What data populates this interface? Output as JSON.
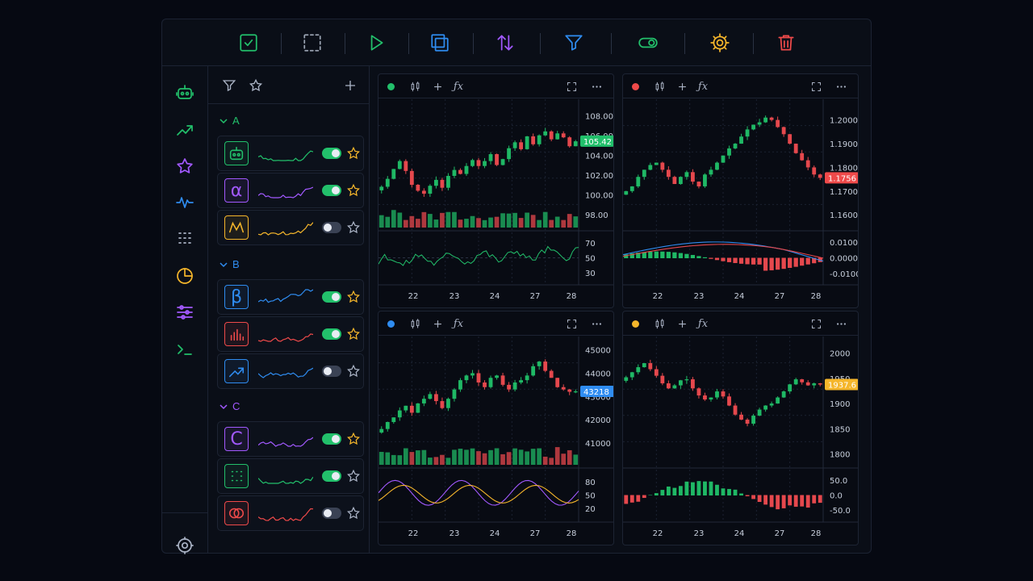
{
  "toolbar": {
    "icons": [
      "check-square-icon",
      "select-dashed-icon",
      "play-icon",
      "copy-icon",
      "sort-arrows-icon",
      "filter-icon",
      "toggle-icon",
      "gear-icon",
      "trash-icon"
    ],
    "colors": [
      "#22c06b",
      "#9aa3b2",
      "#22c06b",
      "#2f8cf0",
      "#a259ff",
      "#2f8cf0",
      "#22c06b",
      "#f5b62b",
      "#ef4a4a"
    ]
  },
  "rail": {
    "icons": [
      "robot-icon",
      "trend-up-icon",
      "star-icon",
      "pulse-icon",
      "grid-dots-icon",
      "pie-chart-icon",
      "sliders-icon",
      "terminal-icon",
      "settings-icon"
    ]
  },
  "groups": [
    {
      "name": "A",
      "color": "#22c06b",
      "items": [
        {
          "avatar": "robot",
          "glyph": "",
          "color": "#22c06b",
          "spark": "#22c06b",
          "enabled": true,
          "starred": true
        },
        {
          "avatar": "alpha",
          "glyph": "α",
          "color": "#a259ff",
          "spark": "#a259ff",
          "enabled": true,
          "starred": true
        },
        {
          "avatar": "wave",
          "glyph": "",
          "color": "#f5b62b",
          "spark": "#f5b62b",
          "enabled": false,
          "starred": false
        }
      ]
    },
    {
      "name": "B",
      "color": "#2f8cf0",
      "items": [
        {
          "avatar": "beta",
          "glyph": "β",
          "color": "#2f8cf0",
          "spark": "#2f8cf0",
          "enabled": true,
          "starred": true
        },
        {
          "avatar": "bars",
          "glyph": "",
          "color": "#ef4a4a",
          "spark": "#ef4a4a",
          "enabled": true,
          "starred": true
        },
        {
          "avatar": "trend",
          "glyph": "",
          "color": "#2f8cf0",
          "spark": "#2f8cf0",
          "enabled": false,
          "starred": false
        }
      ]
    },
    {
      "name": "C",
      "color": "#a259ff",
      "items": [
        {
          "avatar": "letter",
          "glyph": "C",
          "color": "#a259ff",
          "spark": "#a259ff",
          "enabled": true,
          "starred": true
        },
        {
          "avatar": "dots",
          "glyph": "",
          "color": "#22c06b",
          "spark": "#22c06b",
          "enabled": true,
          "starred": false
        },
        {
          "avatar": "rings",
          "glyph": "",
          "color": "#ef4a4a",
          "spark": "#ef4a4a",
          "enabled": false,
          "starred": false
        }
      ]
    }
  ],
  "panels": [
    {
      "dot": "#22c06b",
      "x_labels": [
        "22",
        "23",
        "24",
        "27",
        "28"
      ],
      "price_ticks": [
        "108.00",
        "106.00",
        "104.00",
        "102.00",
        "100.00",
        "98.00"
      ],
      "price_min": 97,
      "price_max": 109,
      "last_price": "105.42",
      "last_color": "#22c06b",
      "sub_type": "rsi",
      "sub_ticks": [
        "70",
        "50",
        "30"
      ],
      "sub_min": 20,
      "sub_max": 80,
      "closes": [
        100.8,
        101.6,
        102.6,
        103.4,
        102.4,
        101.0,
        100.4,
        100.1,
        100.9,
        101.5,
        100.7,
        101.9,
        102.5,
        102.1,
        102.9,
        103.5,
        102.9,
        103.4,
        104.1,
        103.0,
        103.6,
        104.7,
        105.3,
        104.6,
        105.9,
        105.1,
        106.0,
        106.4,
        105.6,
        106.2,
        105.8,
        104.9,
        105.4
      ]
    },
    {
      "dot": "#ef4a4a",
      "x_labels": [
        "22",
        "23",
        "24",
        "27",
        "28"
      ],
      "price_ticks": [
        "1.2000",
        "1.1900",
        "1.1800",
        "1.1700",
        "1.1600"
      ],
      "price_min": 1.156,
      "price_max": 1.206,
      "last_price": "1.1756",
      "last_color": "#ef4a4a",
      "sub_type": "macd",
      "sub_ticks": [
        "0.0100",
        "0.0000",
        "-0.0100"
      ],
      "sub_min": -0.014,
      "sub_max": 0.014,
      "closes": [
        1.17,
        1.172,
        1.176,
        1.179,
        1.181,
        1.182,
        1.179,
        1.176,
        1.173,
        1.176,
        1.178,
        1.174,
        1.172,
        1.177,
        1.179,
        1.182,
        1.185,
        1.188,
        1.19,
        1.193,
        1.196,
        1.198,
        1.199,
        1.201,
        1.2,
        1.197,
        1.194,
        1.19,
        1.186,
        1.183,
        1.18,
        1.177,
        1.1756
      ]
    },
    {
      "dot": "#2f8cf0",
      "x_labels": [
        "22",
        "23",
        "24",
        "27",
        "28"
      ],
      "price_ticks": [
        "45000",
        "44000",
        "43000",
        "42000",
        "41000"
      ],
      "price_min": 40200,
      "price_max": 45300,
      "last_price": "43218",
      "last_color": "#2f8cf0",
      "sub_type": "stoch",
      "sub_ticks": [
        "80",
        "50",
        "20"
      ],
      "sub_min": 0,
      "sub_max": 100,
      "closes": [
        41600,
        41900,
        42100,
        42400,
        42600,
        42300,
        42700,
        42900,
        43100,
        42800,
        42500,
        42900,
        43300,
        43700,
        43900,
        44000,
        43600,
        43400,
        43800,
        43900,
        43500,
        43300,
        43600,
        43700,
        43900,
        44300,
        44500,
        44100,
        43800,
        43400,
        43300,
        43200,
        43218
      ]
    },
    {
      "dot": "#f5b62b",
      "x_labels": [
        "22",
        "23",
        "24",
        "27",
        "28"
      ],
      "price_ticks": [
        "2000",
        "1950",
        "1900",
        "1850",
        "1800"
      ],
      "price_min": 1785,
      "price_max": 2020,
      "last_price": "1937.6",
      "last_color": "#f5b62b",
      "sub_type": "histogram",
      "sub_ticks": [
        "50.0",
        "0.0",
        "-50.0"
      ],
      "sub_min": -75,
      "sub_max": 75,
      "closes": [
        1952,
        1962,
        1972,
        1980,
        1968,
        1955,
        1940,
        1930,
        1936,
        1946,
        1948,
        1930,
        1916,
        1908,
        1912,
        1924,
        1914,
        1896,
        1878,
        1868,
        1860,
        1876,
        1888,
        1896,
        1900,
        1912,
        1924,
        1938,
        1948,
        1942,
        1936,
        1940,
        1937.6
      ]
    }
  ]
}
